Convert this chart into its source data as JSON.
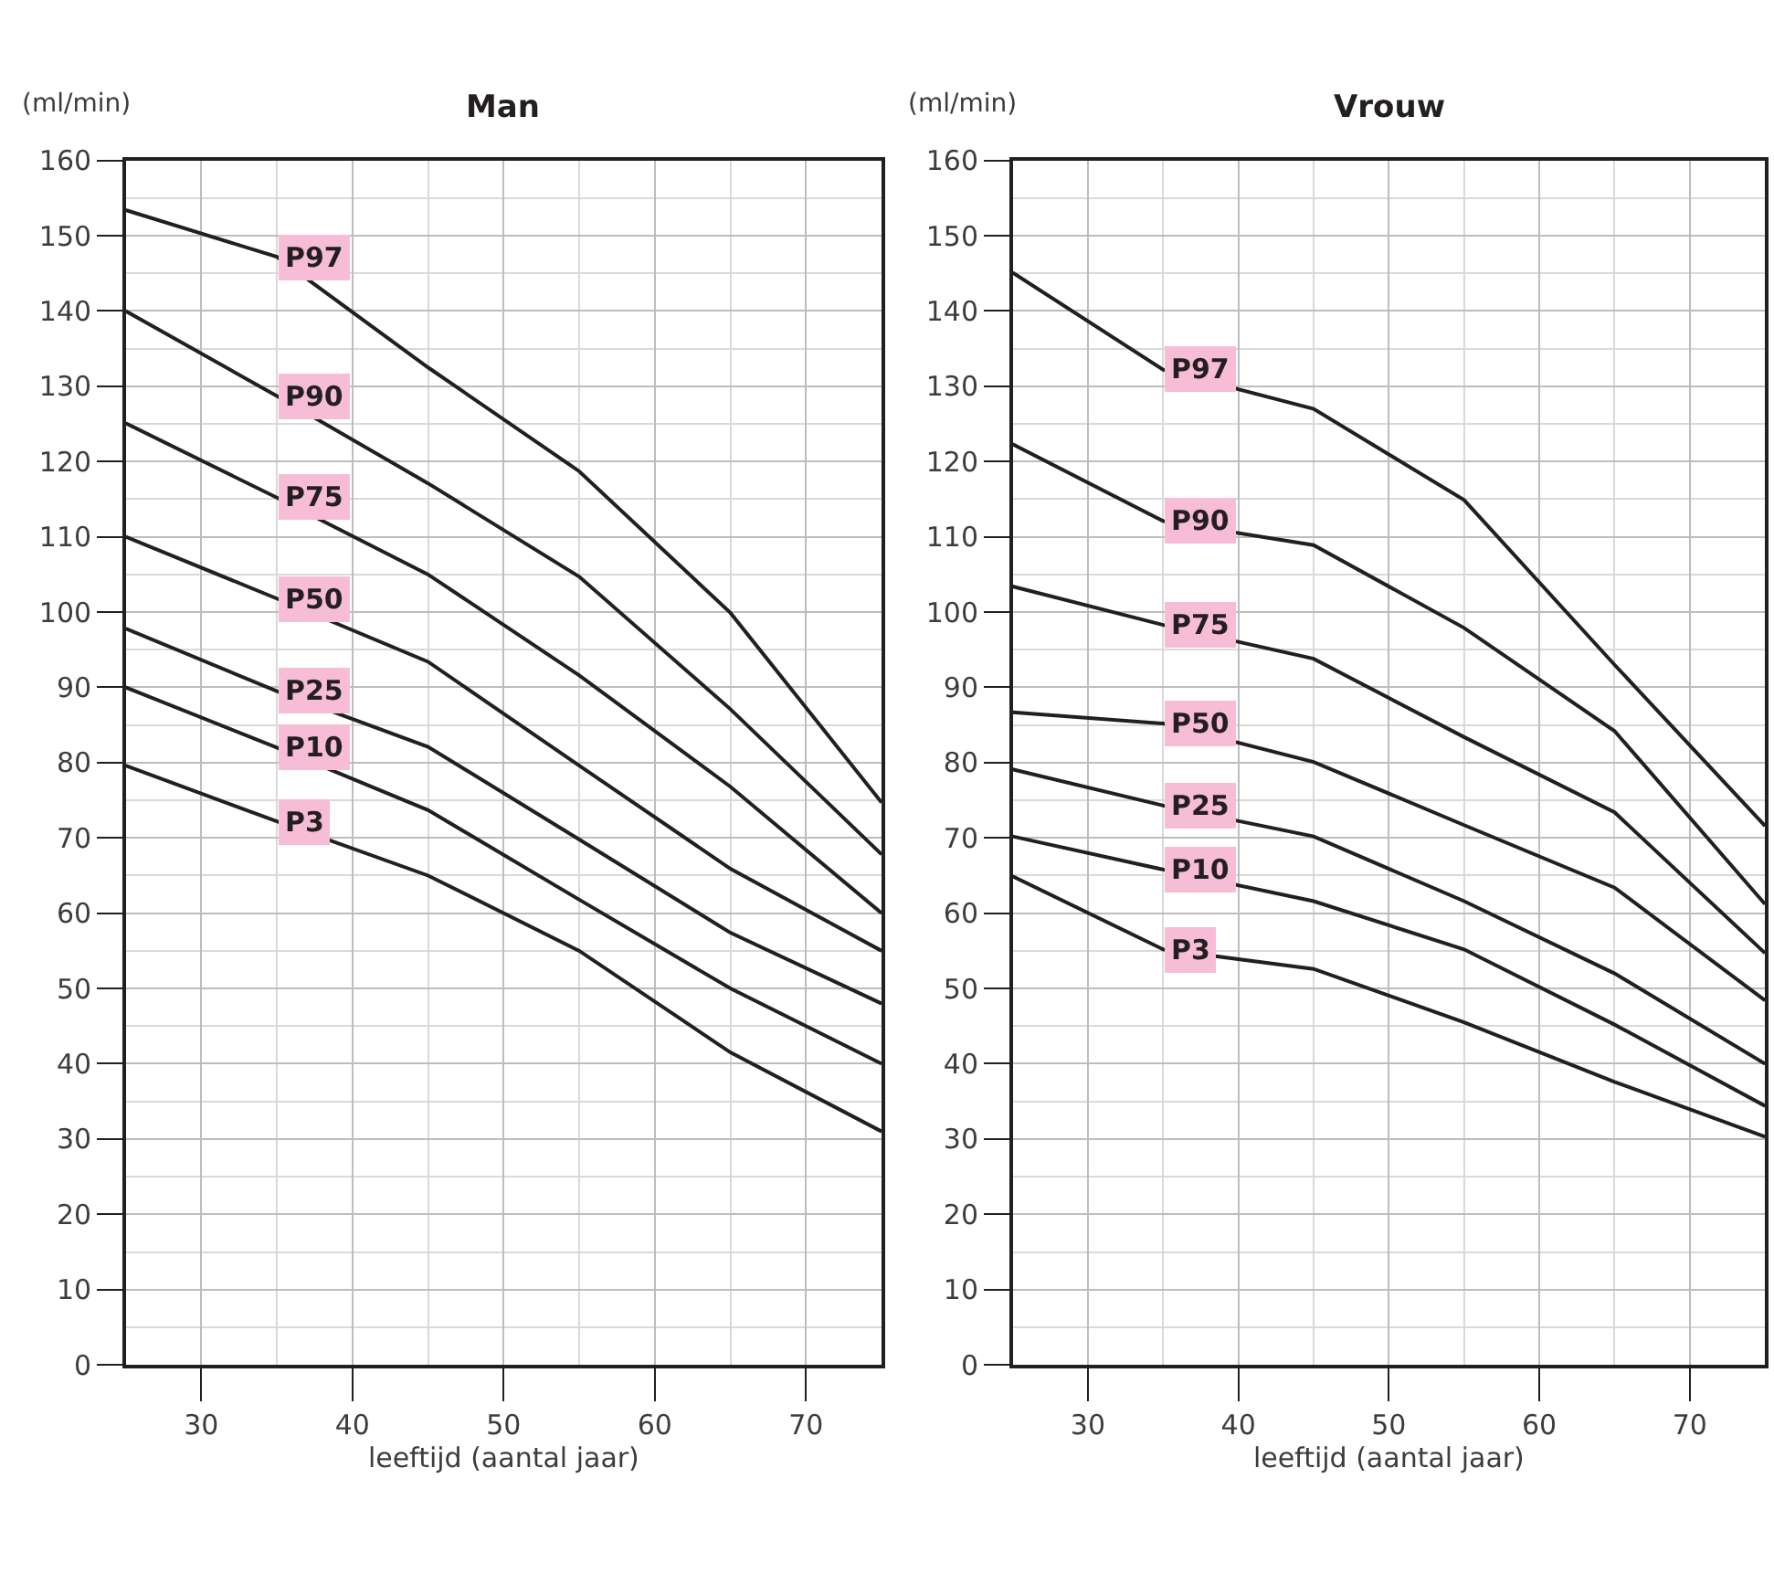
{
  "chart_data": [
    {
      "type": "line",
      "title": "Man",
      "xlabel": "leeftijd (aantal jaar)",
      "ylabel": "(ml/min)",
      "x": [
        25,
        35,
        45,
        55,
        65,
        75
      ],
      "xlim": [
        25,
        75
      ],
      "xticks": [
        30,
        40,
        50,
        60,
        70
      ],
      "ylim": [
        0,
        160
      ],
      "yticks": [
        0,
        10,
        20,
        30,
        40,
        50,
        60,
        70,
        80,
        90,
        100,
        110,
        120,
        130,
        140,
        150,
        160
      ],
      "grid": true,
      "legend": false,
      "marker": "none",
      "line_style": "solid",
      "series": [
        {
          "name": "P97",
          "color": "#231f20",
          "values": [
            153.4,
            147.2,
            132.5,
            118.7,
            99.9,
            74.7
          ]
        },
        {
          "name": "P90",
          "color": "#231f20",
          "values": [
            140,
            128.7,
            117.1,
            104.7,
            87.1,
            67.8
          ]
        },
        {
          "name": "P75",
          "color": "#231f20",
          "values": [
            125.1,
            115.2,
            105,
            91.6,
            76.8,
            60
          ]
        },
        {
          "name": "P50",
          "color": "#231f20",
          "values": [
            110,
            101.8,
            93.4,
            79.6,
            65.9,
            55
          ]
        },
        {
          "name": "P25",
          "color": "#231f20",
          "values": [
            97.8,
            89.5,
            82.1,
            69.8,
            57.4,
            48
          ]
        },
        {
          "name": "P10",
          "color": "#231f20",
          "values": [
            90,
            82,
            73.7,
            61.8,
            50,
            40
          ]
        },
        {
          "name": "P3",
          "color": "#231f20",
          "values": [
            79.6,
            72.2,
            65,
            55,
            41.5,
            31
          ]
        }
      ]
    },
    {
      "type": "line",
      "title": "Vrouw",
      "xlabel": "leeftijd (aantal jaar)",
      "ylabel": "(ml/min)",
      "x": [
        25,
        35,
        45,
        55,
        65,
        75
      ],
      "xlim": [
        25,
        75
      ],
      "xticks": [
        30,
        40,
        50,
        60,
        70
      ],
      "ylim": [
        0,
        160
      ],
      "yticks": [
        0,
        10,
        20,
        30,
        40,
        50,
        60,
        70,
        80,
        90,
        100,
        110,
        120,
        130,
        140,
        150,
        160
      ],
      "grid": true,
      "legend": false,
      "marker": "none",
      "line_style": "solid",
      "series": [
        {
          "name": "P97",
          "color": "#231f20",
          "values": [
            145.1,
            132.2,
            127,
            114.9,
            93,
            71.6
          ]
        },
        {
          "name": "P90",
          "color": "#231f20",
          "values": [
            122.3,
            112.1,
            108.9,
            97.9,
            84.2,
            61.2
          ]
        },
        {
          "name": "P75",
          "color": "#231f20",
          "values": [
            103.4,
            98.3,
            93.8,
            83.4,
            73.4,
            54.7
          ]
        },
        {
          "name": "P50",
          "color": "#231f20",
          "values": [
            86.7,
            85.2,
            80.1,
            71.7,
            63.4,
            48.4
          ]
        },
        {
          "name": "P25",
          "color": "#231f20",
          "values": [
            79.1,
            74.3,
            70.2,
            61.6,
            52,
            40
          ]
        },
        {
          "name": "P10",
          "color": "#231f20",
          "values": [
            70.2,
            65.8,
            61.6,
            55.2,
            45.2,
            34.4
          ]
        },
        {
          "name": "P3",
          "color": "#231f20",
          "values": [
            64.9,
            55.2,
            52.6,
            45.5,
            37.6,
            30.3
          ]
        }
      ]
    }
  ]
}
